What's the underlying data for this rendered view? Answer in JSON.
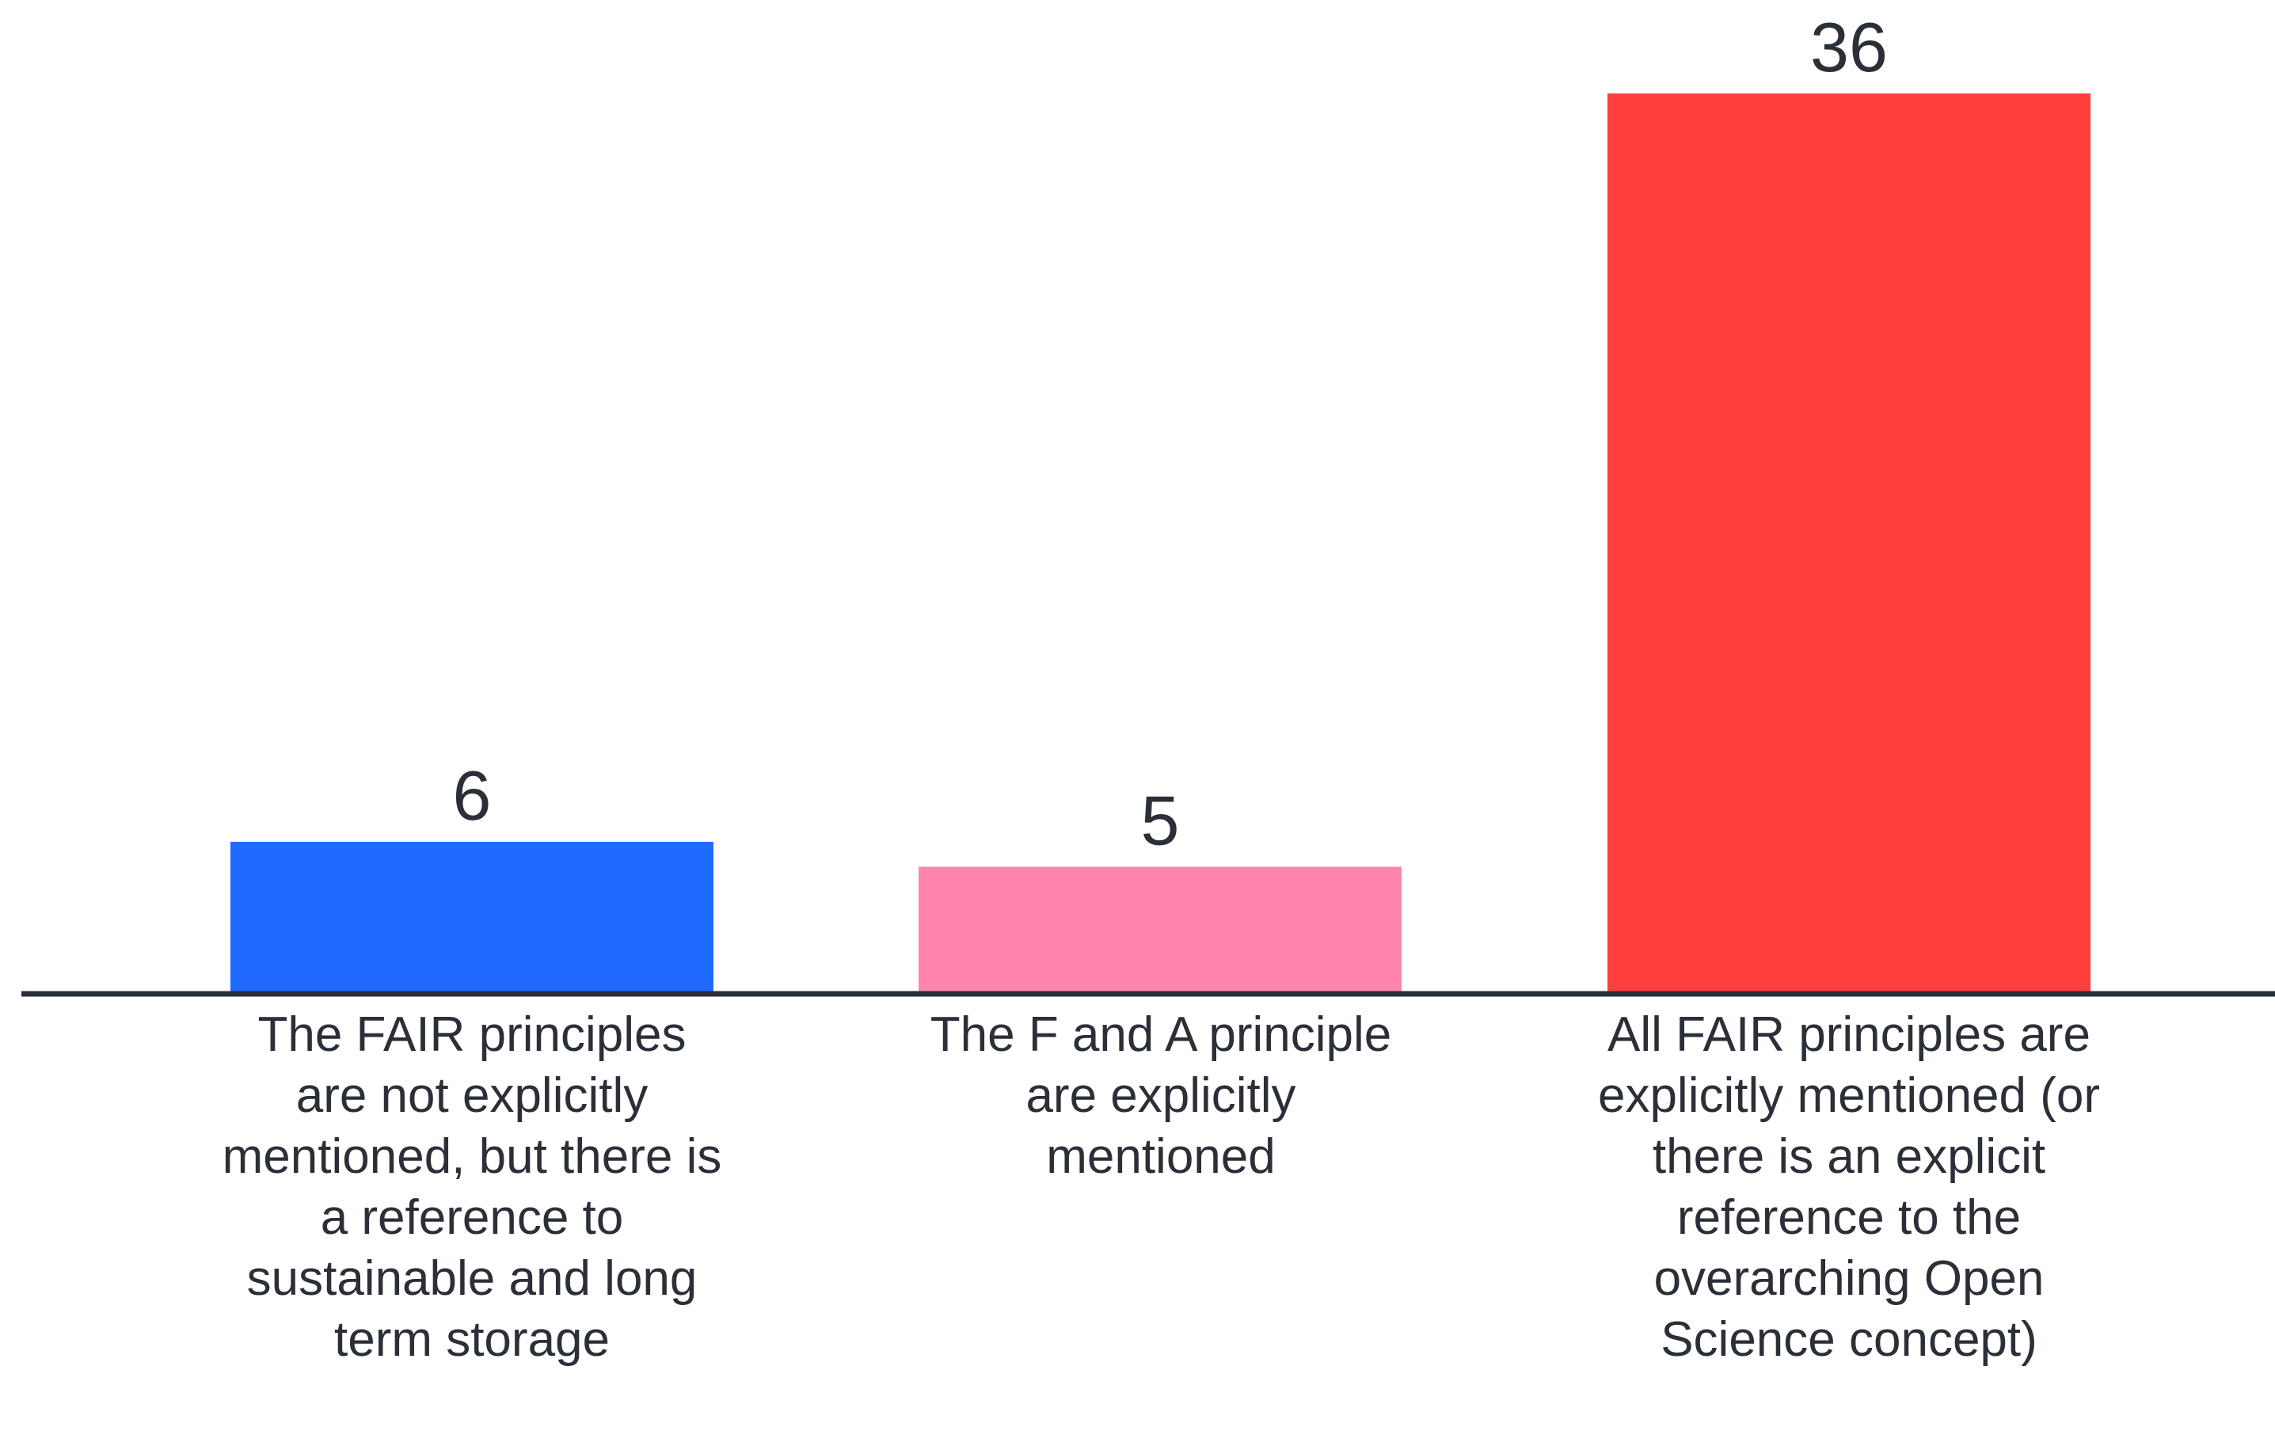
{
  "chart_data": {
    "type": "bar",
    "categories": [
      "The FAIR principles are not explicitly mentioned, but there is a reference to sustainable and long term storage",
      "The F and A principle are explicitly mentioned",
      "All FAIR principles are explicitly mentioned (or there is an explicit reference to the overarching Open Science concept)"
    ],
    "values": [
      6,
      5,
      36
    ],
    "data_labels": [
      "6",
      "5",
      "36"
    ],
    "colors": [
      "#1f6bff",
      "#ff85ad",
      "#ff3f3c"
    ],
    "axis_color": "#2b2f38",
    "title": "",
    "xlabel": "",
    "ylabel": "",
    "ylim": [
      0,
      36
    ],
    "grid": false,
    "legend": "none"
  }
}
